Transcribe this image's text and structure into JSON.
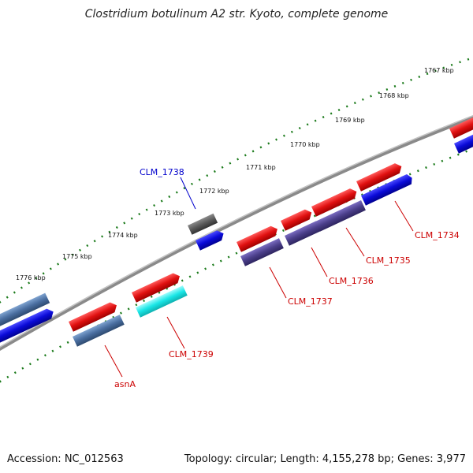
{
  "title": "Clostridium botulinum A2 str. Kyoto, complete genome",
  "footer": {
    "accession": "Accession: NC_012563",
    "summary": "Topology: circular; Length: 4,155,278 bp; Genes: 3,977"
  },
  "ticks": [
    "1767 kbp",
    "1768 kbp",
    "1769 kbp",
    "1770 kbp",
    "1771 kbp",
    "1772 kbp",
    "1773 kbp",
    "1774 kbp",
    "1775 kbp",
    "1776 kbp"
  ],
  "genes": [
    {
      "label": "CLM_1734",
      "color": "#cc0000"
    },
    {
      "label": "CLM_1735",
      "color": "#cc0000"
    },
    {
      "label": "CLM_1736",
      "color": "#cc0000"
    },
    {
      "label": "CLM_1737",
      "color": "#cc0000"
    },
    {
      "label": "CLM_1738",
      "color": "#0000cc"
    },
    {
      "label": "CLM_1739",
      "color": "#cc0000"
    },
    {
      "label": "asnA",
      "color": "#cc0000"
    }
  ],
  "colors": {
    "backbone": "#8a8a8a",
    "tick_ring": "#1a7a1a",
    "red_gene": "#e01010",
    "blue_gene": "#0a0ad8",
    "slate_gene": "#4a6ea0",
    "purple_gene": "#4b3f8a",
    "cyan_gene": "#19e6e6",
    "gray_gene": "#5a5a5a"
  }
}
